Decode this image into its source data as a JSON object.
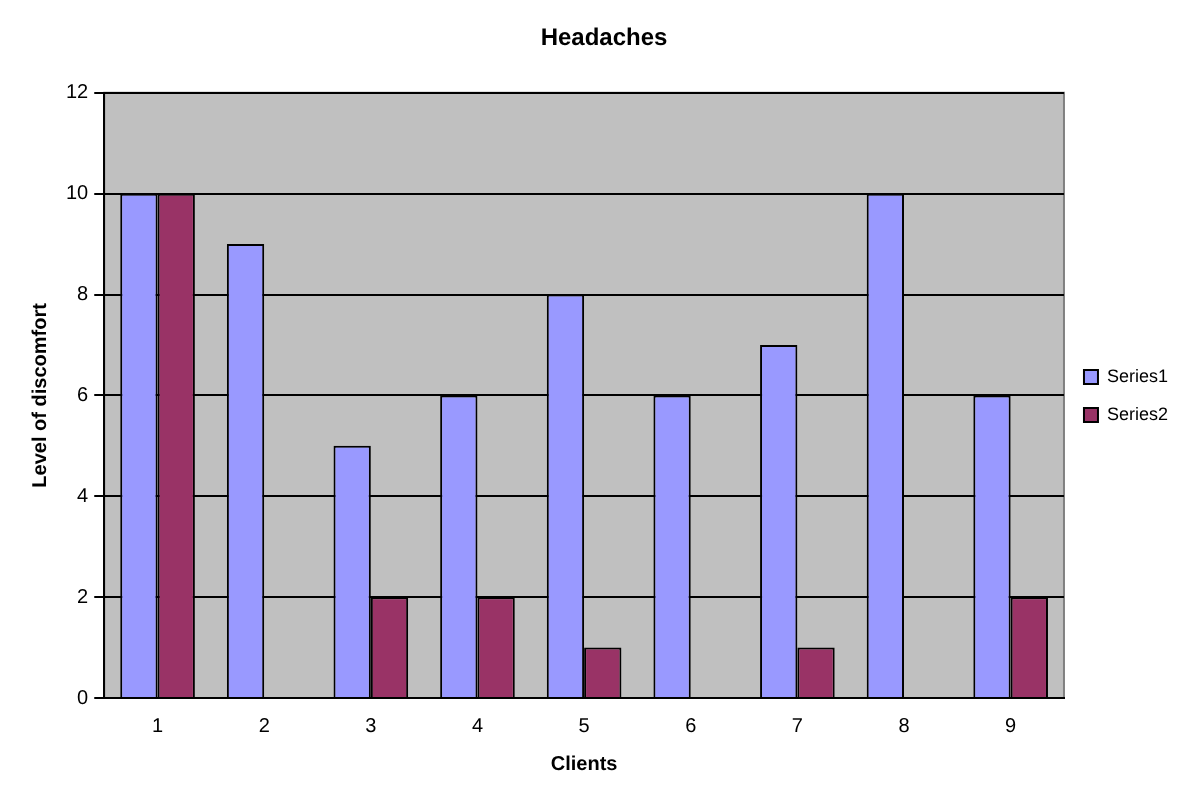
{
  "chart_data": {
    "type": "bar",
    "title": "Headaches",
    "xlabel": "Clients",
    "ylabel": "Level of discomfort",
    "categories": [
      "1",
      "2",
      "3",
      "4",
      "5",
      "6",
      "7",
      "8",
      "9"
    ],
    "series": [
      {
        "name": "Series1",
        "color": "#9999ff",
        "values": [
          10,
          9,
          5,
          6,
          8,
          6,
          7,
          10,
          6
        ]
      },
      {
        "name": "Series2",
        "color": "#993366",
        "values": [
          10,
          0,
          2,
          2,
          1,
          0,
          1,
          0,
          2
        ]
      }
    ],
    "ylim": [
      0,
      12
    ],
    "yticks": [
      0,
      2,
      4,
      6,
      8,
      10,
      12
    ],
    "grid": "y",
    "legend": "right"
  }
}
